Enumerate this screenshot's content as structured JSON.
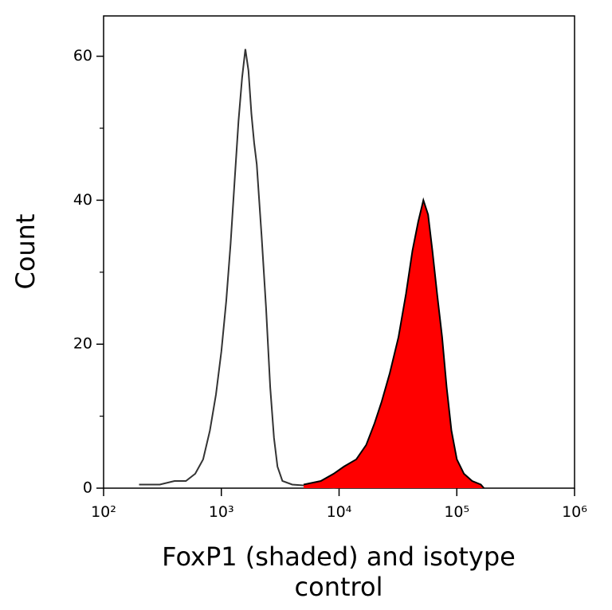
{
  "chart_data": {
    "type": "histogram-overlay",
    "x_label": "FoxP1 (shaded) and isotype control",
    "y_label": "Count",
    "log_x": true,
    "xlim": [
      100,
      1000000
    ],
    "xticks": [
      {
        "value": 100,
        "label": "10²"
      },
      {
        "value": 1000,
        "label": "10³"
      },
      {
        "value": 10000,
        "label": "10⁴"
      },
      {
        "value": 100000,
        "label": "10⁵"
      },
      {
        "value": 1000000,
        "label": "10⁶"
      }
    ],
    "ylim": [
      0,
      65.6
    ],
    "yticks": [
      0,
      20,
      40,
      60
    ],
    "minor_yticks": [
      10,
      30,
      50
    ],
    "series": [
      {
        "name": "isotype control",
        "color": "#333333",
        "filled": false,
        "x": [
          200,
          300,
          400,
          500,
          600,
          700,
          800,
          900,
          1000,
          1100,
          1200,
          1300,
          1400,
          1500,
          1600,
          1700,
          1800,
          1900,
          2000,
          2200,
          2400,
          2600,
          2800,
          3000,
          3300,
          4000,
          10000
        ],
        "values": [
          0.5,
          0.5,
          1,
          1,
          2,
          4,
          8,
          13,
          19,
          26,
          34,
          43,
          51,
          57,
          61,
          58,
          52,
          48,
          45,
          35,
          25,
          14,
          7,
          3,
          1,
          0.5,
          0
        ]
      },
      {
        "name": "FoxP1",
        "color": "#ff0000",
        "filled": true,
        "x": [
          5000,
          7000,
          9000,
          11000,
          14000,
          17000,
          20000,
          23000,
          27000,
          32000,
          37000,
          42000,
          47000,
          52000,
          57000,
          62000,
          68000,
          75000,
          82000,
          90000,
          100000,
          115000,
          135000,
          160000,
          170000
        ],
        "values": [
          0.5,
          1,
          2,
          3,
          4,
          6,
          9,
          12,
          16,
          21,
          27,
          33,
          37,
          40,
          38,
          33,
          27,
          21,
          14,
          8,
          4,
          2,
          1,
          0.5,
          0
        ]
      }
    ]
  }
}
